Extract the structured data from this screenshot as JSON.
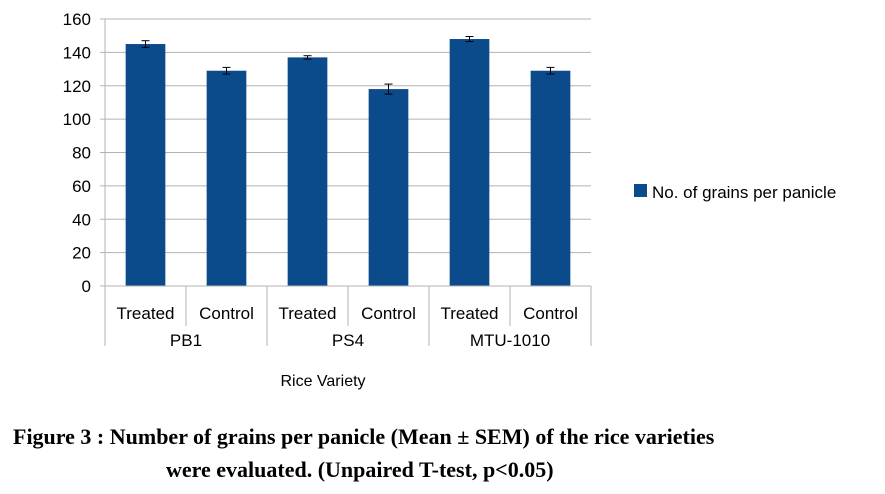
{
  "chart_data": {
    "type": "bar",
    "groups": [
      {
        "label": "PB1",
        "categories": [
          "Treated",
          "Control"
        ]
      },
      {
        "label": "PS4",
        "categories": [
          "Treated",
          "Control"
        ]
      },
      {
        "label": "MTU-1010",
        "categories": [
          "Treated",
          "Control"
        ]
      }
    ],
    "series": [
      {
        "name": "No. of grains per panicle",
        "values": [
          145,
          129,
          137,
          118,
          148,
          129
        ],
        "errors": [
          2,
          2,
          1,
          3,
          1.5,
          2
        ],
        "color": "#0b4b8c"
      }
    ],
    "xlabel": "Rice Variety",
    "ylabel": "",
    "ylim": [
      0,
      160
    ],
    "yticks": [
      0,
      20,
      40,
      60,
      80,
      100,
      120,
      140,
      160
    ],
    "grid": true,
    "legend": "right"
  },
  "caption": {
    "line1": "Figure 3 : Number of grains per panicle (Mean ± SEM) of the rice varieties",
    "line2": "were evaluated. (Unpaired T-test, p<0.05)"
  }
}
